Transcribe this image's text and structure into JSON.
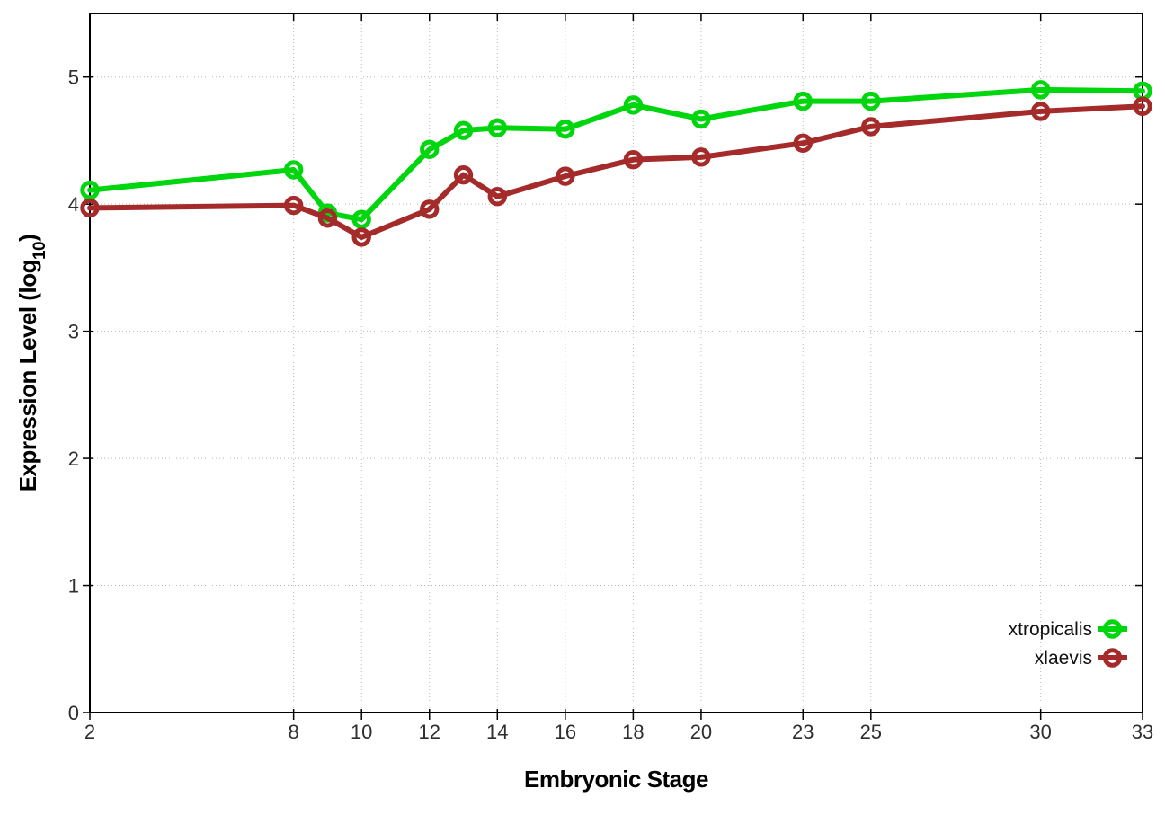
{
  "chart_data": {
    "type": "line",
    "title": "",
    "xlabel": "Embryonic Stage",
    "ylabel": {
      "prefix": "Expression Level (log",
      "subscript": "10",
      "suffix": ")"
    },
    "xlim": [
      2,
      33
    ],
    "ylim": [
      0,
      5.5
    ],
    "grid": "dotted",
    "legend_position": "inside-bottom-right",
    "x_tick_labels": [
      "2",
      "8",
      "10",
      "12",
      "14",
      "16",
      "18",
      "20",
      "23",
      "25",
      "30",
      "33"
    ],
    "x_tick_values": [
      2,
      8,
      10,
      12,
      14,
      16,
      18,
      20,
      23,
      25,
      30,
      33
    ],
    "y_tick_labels": [
      "0",
      "1",
      "2",
      "3",
      "4",
      "5"
    ],
    "y_tick_values": [
      0,
      1,
      2,
      3,
      4,
      5
    ],
    "x": [
      2,
      8,
      9,
      10,
      12,
      13,
      14,
      16,
      18,
      20,
      23,
      25,
      30,
      33
    ],
    "series": [
      {
        "name": "xtropicalis",
        "color": "#00d60e",
        "marker": "open-circle",
        "values": [
          4.11,
          4.27,
          3.93,
          3.88,
          4.43,
          4.58,
          4.6,
          4.59,
          4.78,
          4.67,
          4.81,
          4.81,
          4.9,
          4.89
        ]
      },
      {
        "name": "xlaevis",
        "color": "#a52a2a",
        "marker": "open-circle",
        "values": [
          3.97,
          3.99,
          3.89,
          3.74,
          3.96,
          4.23,
          4.06,
          4.22,
          4.35,
          4.37,
          4.48,
          4.61,
          4.73,
          4.77
        ]
      }
    ],
    "colors": {
      "background": "#ffffff",
      "axis": "#000000",
      "grid": "#b8b8b8",
      "tick_text": "#2e2e2e"
    }
  }
}
